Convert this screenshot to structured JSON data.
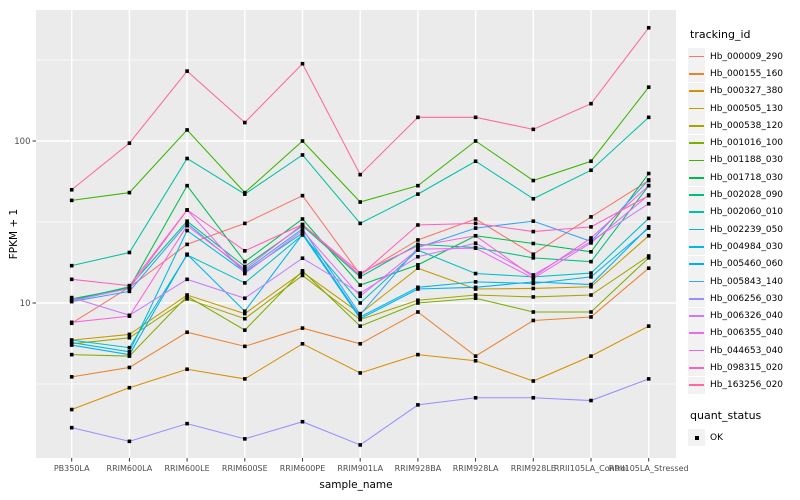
{
  "figure": {
    "background": "#FFFFFF",
    "panel_background": "#EBEBEB",
    "grid_color": "#FFFFFF",
    "axis_text_color": "#4D4D4D",
    "tick_mark_color": "#333333",
    "point_color": "#000000"
  },
  "chart_data": {
    "type": "line",
    "title": "",
    "xlabel": "sample_name",
    "ylabel": "FPKM + 1",
    "y_scale": "log10",
    "ylim": [
      1.05,
      680
    ],
    "y_ticks": [
      10,
      100
    ],
    "y_minor_ticks": [
      3.162,
      31.62,
      316.2
    ],
    "grid": true,
    "legend_position": "right",
    "marker": "square",
    "categories": [
      "PB350LA",
      "RRIM600LA",
      "RRIM600LE",
      "RRIM600SE",
      "RRIM600PE",
      "RRIM901LA",
      "RRIM928BA",
      "RRIM928LA",
      "RRIM928LE",
      "RRII105LA_Control",
      "RRII105LA_Stressed"
    ],
    "series": [
      {
        "name": "Hb_000009_290",
        "color": "#F8766D",
        "values": [
          7.5,
          12.5,
          23,
          31,
          46,
          15,
          24.5,
          33,
          20,
          34,
          57
        ]
      },
      {
        "name": "Hb_000155_160",
        "color": "#EA8331",
        "values": [
          3.5,
          4.0,
          6.6,
          5.4,
          7.0,
          5.6,
          8.8,
          4.7,
          7.8,
          8.2,
          16.4
        ]
      },
      {
        "name": "Hb_000327_380",
        "color": "#D89000",
        "values": [
          2.2,
          3.0,
          3.9,
          3.4,
          5.6,
          3.7,
          4.8,
          4.4,
          3.3,
          4.7,
          7.2
        ]
      },
      {
        "name": "Hb_000505_130",
        "color": "#C49A00",
        "values": [
          5.9,
          6.4,
          11.2,
          8.6,
          15.5,
          8.6,
          16.4,
          12.2,
          12.3,
          12.6,
          26
        ]
      },
      {
        "name": "Hb_000538_120",
        "color": "#A3A500",
        "values": [
          5.6,
          6.1,
          10.6,
          8.0,
          14.8,
          7.9,
          10.4,
          11.2,
          10.9,
          11.2,
          19.5
        ]
      },
      {
        "name": "Hb_001016_100",
        "color": "#7CAE00",
        "values": [
          4.8,
          4.7,
          11.0,
          6.8,
          15.8,
          7.2,
          10.0,
          10.7,
          8.8,
          8.8,
          19
        ]
      },
      {
        "name": "Hb_001188_030",
        "color": "#39B600",
        "values": [
          43,
          48,
          117,
          48,
          100,
          42,
          53,
          100,
          57,
          75,
          215
        ]
      },
      {
        "name": "Hb_001718_030",
        "color": "#00BB4E",
        "values": [
          10.6,
          12.4,
          53,
          18,
          33,
          12.9,
          17.2,
          26,
          23.3,
          20.7,
          63
        ]
      },
      {
        "name": "Hb_002028_090",
        "color": "#00BF7D",
        "values": [
          10.4,
          12.6,
          32,
          16.8,
          30,
          14.5,
          23,
          22,
          19,
          18,
          53
        ]
      },
      {
        "name": "Hb_002060_010",
        "color": "#00C1A3",
        "values": [
          17,
          20.5,
          78,
          47,
          82,
          31,
          47,
          75,
          44,
          66,
          140
        ]
      },
      {
        "name": "Hb_002239_050",
        "color": "#00BFC4",
        "values": [
          5.9,
          5.3,
          19.8,
          13.3,
          26.3,
          10,
          21.2,
          15.2,
          14.5,
          15.3,
          33.3
        ]
      },
      {
        "name": "Hb_004984_030",
        "color": "#00BAE0",
        "values": [
          5.7,
          5.0,
          28,
          15.5,
          27,
          8.2,
          12.5,
          13.5,
          13.2,
          14.5,
          29
        ]
      },
      {
        "name": "Hb_005460_060",
        "color": "#00B0F6",
        "values": [
          5.5,
          4.8,
          20,
          8.9,
          26.5,
          8.0,
          12.2,
          12.5,
          13.5,
          13,
          29.5
        ]
      },
      {
        "name": "Hb_005843_140",
        "color": "#35A2FF",
        "values": [
          10.2,
          11.8,
          31,
          15.8,
          28.7,
          8.5,
          22,
          29,
          32,
          24,
          57.5
        ]
      },
      {
        "name": "Hb_006256_030",
        "color": "#9590FF",
        "values": [
          1.7,
          1.4,
          1.8,
          1.45,
          1.85,
          1.33,
          2.35,
          2.6,
          2.6,
          2.5,
          3.4
        ]
      },
      {
        "name": "Hb_006326_040",
        "color": "#C77CFF",
        "values": [
          10.8,
          8.4,
          14,
          10.7,
          18.9,
          11.5,
          19.3,
          23.4,
          14.9,
          24,
          41
        ]
      },
      {
        "name": "Hb_006355_040",
        "color": "#E76BF3",
        "values": [
          10.3,
          12.3,
          37.5,
          15.2,
          28,
          11,
          21.5,
          21.8,
          14.2,
          23.5,
          46.4
        ]
      },
      {
        "name": "Hb_044653_040",
        "color": "#FA62DB",
        "values": [
          7.6,
          8.3,
          30,
          16.2,
          30.5,
          15.3,
          22.5,
          26,
          14.5,
          25.2,
          53
        ]
      },
      {
        "name": "Hb_098315_020",
        "color": "#FF62BC",
        "values": [
          14,
          12.8,
          37.5,
          21,
          30.5,
          14.8,
          30.3,
          31,
          27.6,
          29.5,
          46
        ]
      },
      {
        "name": "Hb_163256_020",
        "color": "#FF6A98",
        "values": [
          50,
          97,
          270,
          130,
          300,
          62,
          140,
          140,
          118,
          170,
          500
        ]
      }
    ]
  },
  "legend": {
    "tracking_title": "tracking_id",
    "quant_title": "quant_status",
    "quant_items": [
      {
        "label": "OK"
      }
    ]
  }
}
